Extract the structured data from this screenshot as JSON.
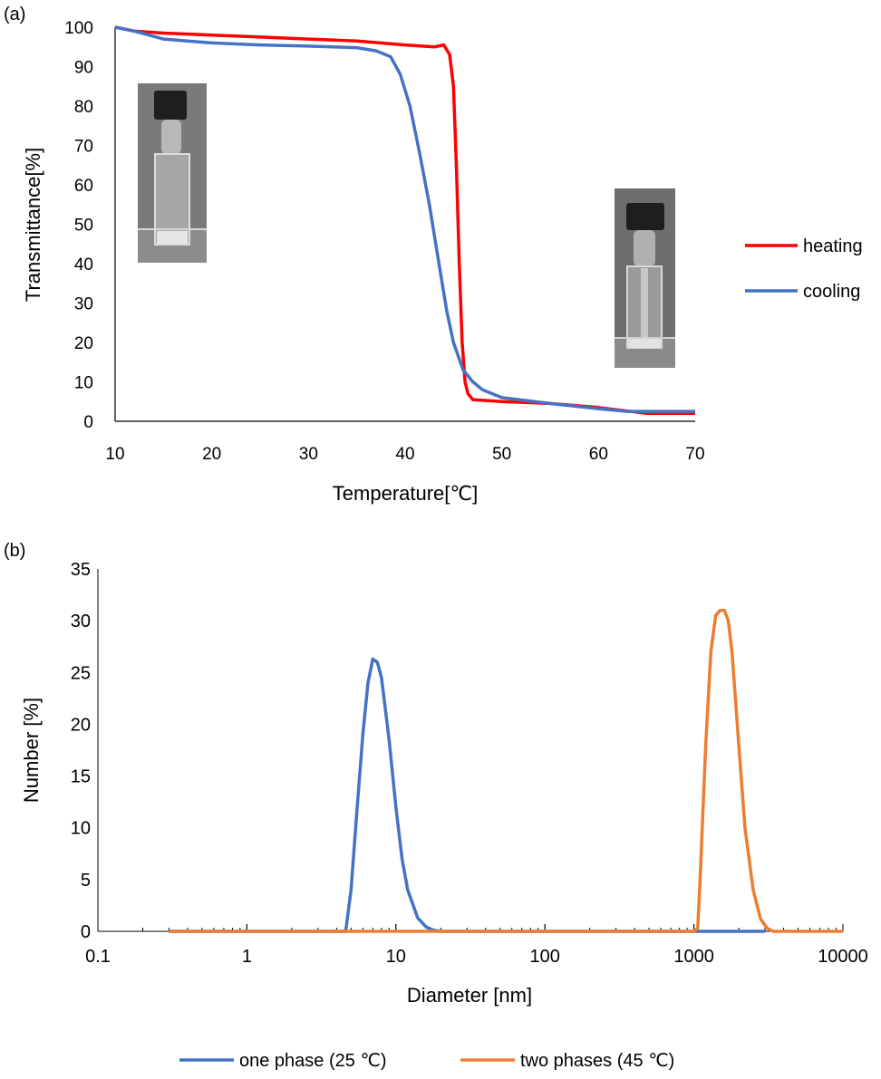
{
  "panel_a": {
    "label": "(a)",
    "colors": {
      "heating": "#ff0000",
      "cooling": "#4472c4"
    },
    "inset_left": {
      "kind": "photo of clear vial",
      "description": "transparent cuvette (one phase)"
    },
    "inset_right": {
      "kind": "photo of vial",
      "description": "cuvette (two phases)"
    }
  },
  "panel_b": {
    "label": "(b)",
    "colors": {
      "one_phase": "#4472c4",
      "two_phases": "#ed7d31"
    }
  },
  "chart_data": [
    {
      "type": "line",
      "xlabel": "Temperature[℃]",
      "ylabel": "Transmittance[%]",
      "xlim": [
        10,
        70
      ],
      "ylim": [
        0,
        100
      ],
      "xticks": [
        10,
        20,
        30,
        40,
        50,
        60,
        70
      ],
      "yticks": [
        0,
        10,
        20,
        30,
        40,
        50,
        60,
        70,
        80,
        90,
        100
      ],
      "grid": false,
      "legend_position": "right",
      "series": [
        {
          "name": "heating",
          "color": "#ff0000",
          "x": [
            10,
            12,
            15,
            20,
            25,
            30,
            35,
            40,
            43,
            44,
            44.6,
            45,
            45.3,
            45.6,
            45.9,
            46.2,
            46.5,
            47,
            50,
            55,
            60,
            65,
            70
          ],
          "y": [
            100,
            99,
            98.5,
            98,
            97.5,
            97,
            96.5,
            95.5,
            95,
            95.5,
            93,
            85,
            65,
            40,
            20,
            10,
            7,
            5.5,
            5,
            4.5,
            3.5,
            2,
            2
          ]
        },
        {
          "name": "cooling",
          "color": "#4472c4",
          "x": [
            10,
            12,
            15,
            20,
            25,
            30,
            35,
            37,
            38.5,
            39.5,
            40.5,
            41.5,
            42.5,
            43.5,
            44.3,
            45,
            46,
            47,
            48,
            50,
            55,
            60,
            63,
            65,
            70
          ],
          "y": [
            100,
            99,
            97,
            96,
            95.5,
            95.2,
            94.8,
            94,
            92.5,
            88,
            80,
            68,
            55,
            40,
            28,
            20,
            13,
            10,
            8,
            6,
            4.5,
            3.2,
            2.5,
            2.5,
            2.5
          ]
        }
      ]
    },
    {
      "type": "line",
      "xlabel": "Diameter [nm]",
      "ylabel": "Number [%]",
      "xscale": "log",
      "xlim": [
        0.1,
        10000
      ],
      "ylim": [
        0,
        35
      ],
      "xtick_labels": [
        "0.1",
        "1",
        "10",
        "100",
        "1000",
        "10000"
      ],
      "yticks": [
        0,
        5,
        10,
        15,
        20,
        25,
        30,
        35
      ],
      "grid": false,
      "legend_position": "bottom",
      "series": [
        {
          "name": "one phase (25 ℃)",
          "color": "#4472c4",
          "x": [
            0.3,
            4.6,
            5.0,
            5.5,
            6.0,
            6.5,
            7.0,
            7.5,
            8.0,
            9.0,
            10,
            11,
            12,
            14,
            16,
            18,
            20,
            25,
            40,
            100,
            1000,
            3000
          ],
          "y": [
            0,
            0,
            4,
            12,
            19,
            24,
            26.3,
            26,
            24.5,
            18.5,
            12,
            7,
            4,
            1.3,
            0.4,
            0.1,
            0,
            0,
            0,
            0,
            0,
            0
          ]
        },
        {
          "name": "two phases (45 ℃)",
          "color": "#ed7d31",
          "x": [
            0.3,
            1,
            10,
            100,
            1000,
            1060,
            1100,
            1200,
            1300,
            1400,
            1500,
            1600,
            1700,
            1800,
            2000,
            2200,
            2500,
            2800,
            3100,
            3400,
            5000,
            10000
          ],
          "y": [
            0,
            0,
            0,
            0,
            0,
            0.3,
            5,
            18,
            27,
            30.5,
            31,
            31,
            30,
            27,
            18,
            10,
            4,
            1.2,
            0.3,
            0,
            0,
            0
          ]
        }
      ]
    }
  ]
}
